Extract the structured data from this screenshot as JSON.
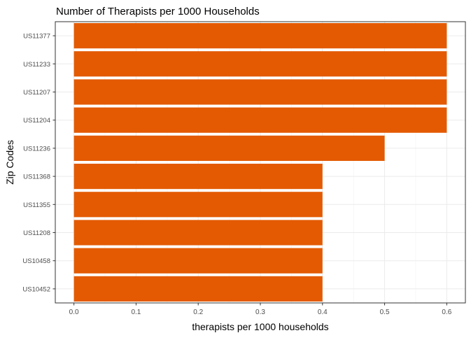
{
  "chart_data": {
    "type": "bar",
    "orientation": "horizontal",
    "title": "Number of Therapists per 1000 Households",
    "xlabel": "therapists per 1000 households",
    "ylabel": "Zip Codes",
    "categories": [
      "US11377",
      "US11233",
      "US11207",
      "US11204",
      "US11236",
      "US11368",
      "US11355",
      "US11208",
      "US10458",
      "US10452"
    ],
    "values": [
      0.6,
      0.6,
      0.6,
      0.6,
      0.5,
      0.4,
      0.4,
      0.4,
      0.4,
      0.4
    ],
    "xlim": [
      -0.03,
      0.63
    ],
    "xticks": [
      0.0,
      0.1,
      0.2,
      0.3,
      0.4,
      0.5,
      0.6
    ],
    "xtick_labels": [
      "0.0",
      "0.1",
      "0.2",
      "0.3",
      "0.4",
      "0.5",
      "0.6"
    ],
    "bar_color": "#e35a02",
    "grid": true,
    "legend": "none"
  }
}
